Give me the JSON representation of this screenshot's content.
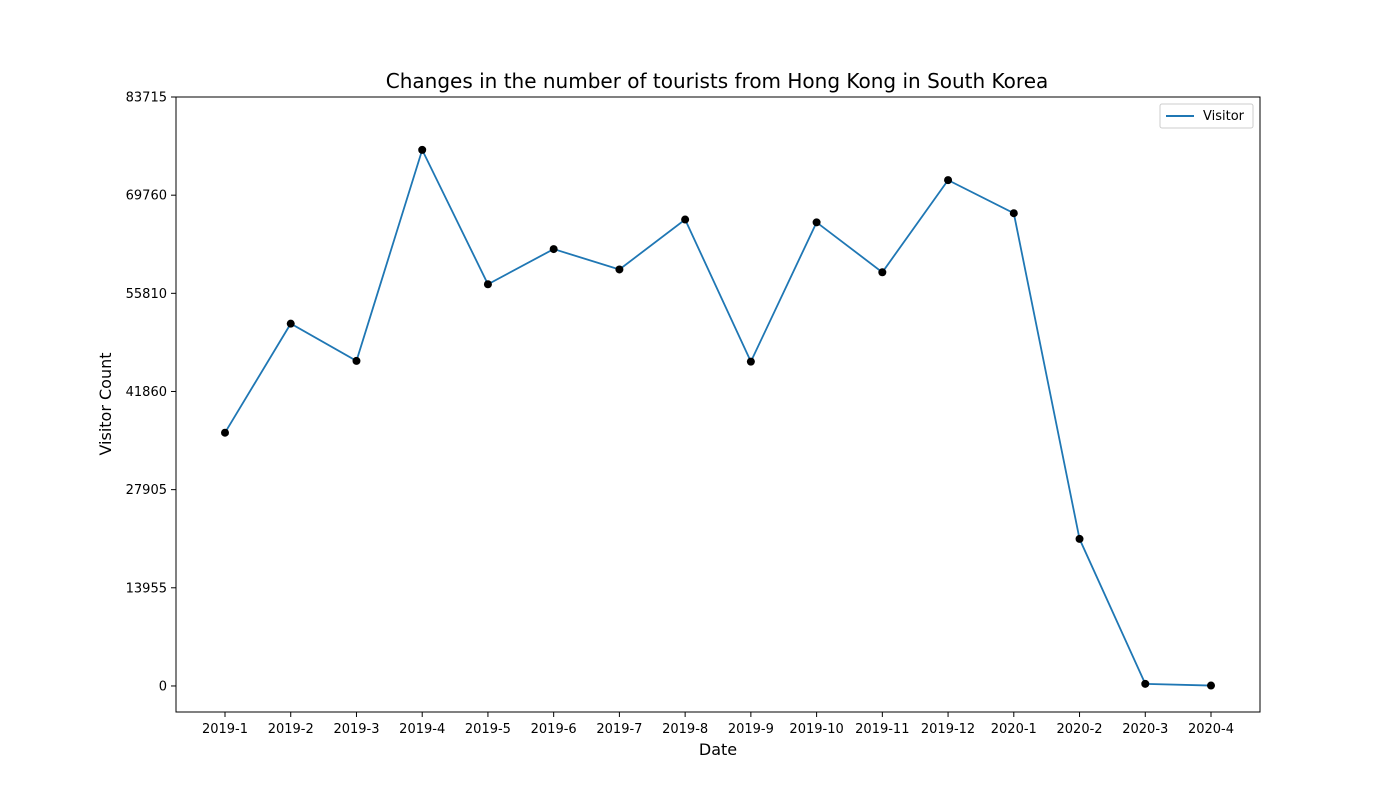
{
  "chart_data": {
    "type": "line",
    "title": "Changes in the number of tourists from Hong Kong in South Korea",
    "xlabel": "Date",
    "ylabel": "Visitor Count",
    "categories": [
      "2019-1",
      "2019-2",
      "2019-3",
      "2019-4",
      "2019-5",
      "2019-6",
      "2019-7",
      "2019-8",
      "2019-9",
      "2019-10",
      "2019-11",
      "2019-12",
      "2020-1",
      "2020-2",
      "2020-3",
      "2020-4"
    ],
    "y_ticks": [
      0,
      13955,
      27905,
      41860,
      55810,
      69760,
      83715
    ],
    "ylim": [
      -3700,
      83715
    ],
    "series": [
      {
        "name": "Visitor",
        "color": "#1f77b4",
        "marker_color": "#000000",
        "values": [
          36000,
          51500,
          46200,
          76200,
          57100,
          62100,
          59200,
          66300,
          46100,
          65900,
          58800,
          71900,
          67200,
          20900,
          300,
          60
        ]
      }
    ],
    "legend": {
      "position": "top-right"
    },
    "grid": false
  }
}
